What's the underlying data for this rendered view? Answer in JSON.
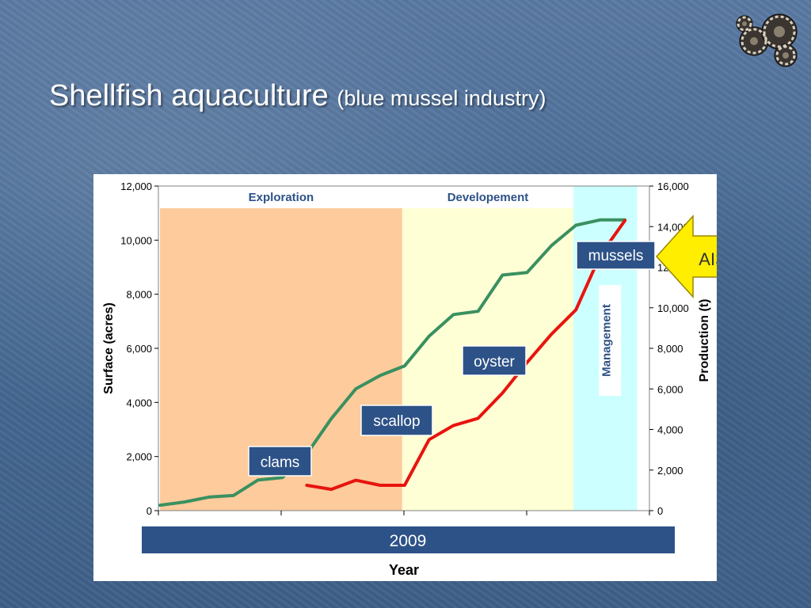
{
  "slide": {
    "title": "Shellfish aquaculture",
    "subtitle": "(blue mussel industry)"
  },
  "colors": {
    "exploration_band": "#fdcb9c",
    "development_band": "#ffffd5",
    "management_band": "#ccffff",
    "surface_line": "#3a9060",
    "production_line": "#e8140e",
    "label_box": "#2d5287",
    "ais_arrow": "#ffee00"
  },
  "chart_data": {
    "type": "line",
    "xlabel": "Year",
    "ylabel_left": "Surface (acres)",
    "ylabel_right": "Production (t)",
    "ylim_left": [
      0,
      12000
    ],
    "ylim_right": [
      0,
      16000
    ],
    "yticks_left": [
      "0",
      "2,000",
      "4,000",
      "6,000",
      "8,000",
      "10,000",
      "12,000"
    ],
    "yticks_right": [
      "0",
      "2,000",
      "4,000",
      "6,000",
      "8,000",
      "10,000",
      "12,000",
      "14,000",
      "16,000"
    ],
    "grid": false,
    "x_index_range": [
      0,
      19
    ],
    "phases": [
      {
        "name": "Exploration",
        "from": 0,
        "to": 9.9
      },
      {
        "name": "Developement",
        "from": 9.9,
        "to": 16.9
      },
      {
        "name": "Management",
        "from": 16.9,
        "to": 19.5
      }
    ],
    "series": [
      {
        "axis": "left",
        "x": [
          0,
          1,
          2,
          3,
          4,
          5,
          6,
          7,
          8,
          9,
          10,
          11,
          12,
          13,
          14,
          15,
          16,
          17,
          18,
          19
        ],
        "values": [
          200,
          320,
          500,
          560,
          1130,
          1220,
          2100,
          3400,
          4500,
          5000,
          5350,
          6450,
          7250,
          7370,
          8710,
          8800,
          9800,
          10550,
          10750,
          10750
        ]
      },
      {
        "axis": "right",
        "x": [
          6,
          7,
          8,
          9,
          10,
          11,
          12,
          13,
          14,
          15,
          16,
          17,
          18,
          19
        ],
        "values": [
          1250,
          1050,
          1500,
          1250,
          1250,
          3500,
          4200,
          4550,
          5800,
          7300,
          8700,
          9900,
          12600,
          14300
        ]
      }
    ],
    "annotations": [
      "clams",
      "scallop",
      "oyster",
      "mussels",
      "AIS"
    ],
    "banner": "2009"
  }
}
